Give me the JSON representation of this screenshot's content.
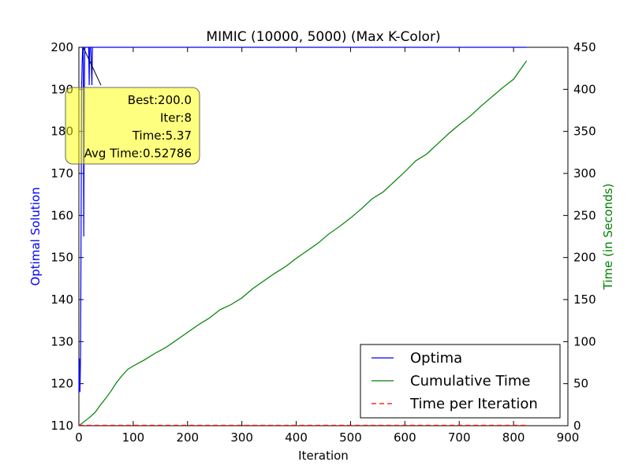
{
  "chart_data": {
    "type": "line",
    "title": "MIMIC (10000, 5000) (Max K-Color)",
    "xlabel": "Iteration",
    "ylabel": "Optimal Solution",
    "y2label": "Time (in Seconds)",
    "xlim": [
      0,
      900
    ],
    "ylim": [
      110,
      200
    ],
    "y2lim": [
      0,
      450
    ],
    "xticks": [
      "0",
      "100",
      "200",
      "300",
      "400",
      "500",
      "600",
      "700",
      "800",
      "900"
    ],
    "yticks": [
      "110",
      "120",
      "130",
      "140",
      "150",
      "160",
      "170",
      "180",
      "190",
      "200"
    ],
    "y2ticks": [
      "0",
      "50",
      "100",
      "150",
      "200",
      "250",
      "300",
      "350",
      "400",
      "450"
    ],
    "grid": false,
    "legend_position": "bottom-right",
    "series": [
      {
        "name": "Optima",
        "axis": "left",
        "color": "#0000ff",
        "style": "solid",
        "points": [
          [
            0,
            118
          ],
          [
            1,
            126
          ],
          [
            2,
            118
          ],
          [
            3,
            126
          ],
          [
            4,
            155
          ],
          [
            5,
            190
          ],
          [
            6,
            196
          ],
          [
            7,
            200
          ],
          [
            8,
            200
          ],
          [
            9,
            155
          ],
          [
            10,
            190
          ],
          [
            11,
            200
          ],
          [
            12,
            200
          ],
          [
            14,
            200
          ],
          [
            16,
            200
          ],
          [
            18,
            200
          ],
          [
            19,
            191
          ],
          [
            20,
            200
          ],
          [
            22,
            200
          ],
          [
            24,
            191
          ],
          [
            25,
            200
          ],
          [
            30,
            200
          ],
          [
            100,
            200
          ],
          [
            200,
            200
          ],
          [
            300,
            200
          ],
          [
            400,
            200
          ],
          [
            500,
            200
          ],
          [
            600,
            200
          ],
          [
            700,
            200
          ],
          [
            824,
            200
          ]
        ]
      },
      {
        "name": "Cumulative Time",
        "axis": "right",
        "color": "#008000",
        "style": "solid",
        "points": [
          [
            0,
            0
          ],
          [
            10,
            5
          ],
          [
            20,
            10
          ],
          [
            30,
            16
          ],
          [
            40,
            25
          ],
          [
            50,
            33
          ],
          [
            60,
            42
          ],
          [
            70,
            52
          ],
          [
            80,
            60
          ],
          [
            90,
            67
          ],
          [
            100,
            71
          ],
          [
            120,
            78
          ],
          [
            140,
            86
          ],
          [
            160,
            93
          ],
          [
            180,
            102
          ],
          [
            200,
            111
          ],
          [
            220,
            120
          ],
          [
            240,
            128
          ],
          [
            260,
            138
          ],
          [
            280,
            144
          ],
          [
            300,
            152
          ],
          [
            320,
            163
          ],
          [
            340,
            172
          ],
          [
            360,
            181
          ],
          [
            380,
            189
          ],
          [
            400,
            199
          ],
          [
            420,
            208
          ],
          [
            440,
            217
          ],
          [
            460,
            228
          ],
          [
            480,
            237
          ],
          [
            500,
            247
          ],
          [
            520,
            258
          ],
          [
            540,
            270
          ],
          [
            560,
            278
          ],
          [
            580,
            290
          ],
          [
            600,
            302
          ],
          [
            620,
            315
          ],
          [
            640,
            323
          ],
          [
            660,
            335
          ],
          [
            680,
            347
          ],
          [
            700,
            358
          ],
          [
            720,
            368
          ],
          [
            740,
            380
          ],
          [
            760,
            391
          ],
          [
            780,
            402
          ],
          [
            800,
            412
          ],
          [
            824,
            434
          ]
        ]
      },
      {
        "name": "Time per Iteration",
        "axis": "right",
        "color": "#ff0000",
        "style": "dashed",
        "points": [
          [
            0,
            0.5
          ],
          [
            100,
            0.5
          ],
          [
            200,
            0.5
          ],
          [
            300,
            0.5
          ],
          [
            400,
            0.5
          ],
          [
            500,
            0.5
          ],
          [
            600,
            0.5
          ],
          [
            700,
            0.5
          ],
          [
            824,
            0.5
          ]
        ]
      }
    ],
    "annotation": {
      "lines": [
        "Best:200.0",
        "Iter:8",
        "Time:5.37",
        "Avg Time:0.52786"
      ],
      "point": [
        8,
        200
      ],
      "box_color": "#ffff00"
    }
  }
}
